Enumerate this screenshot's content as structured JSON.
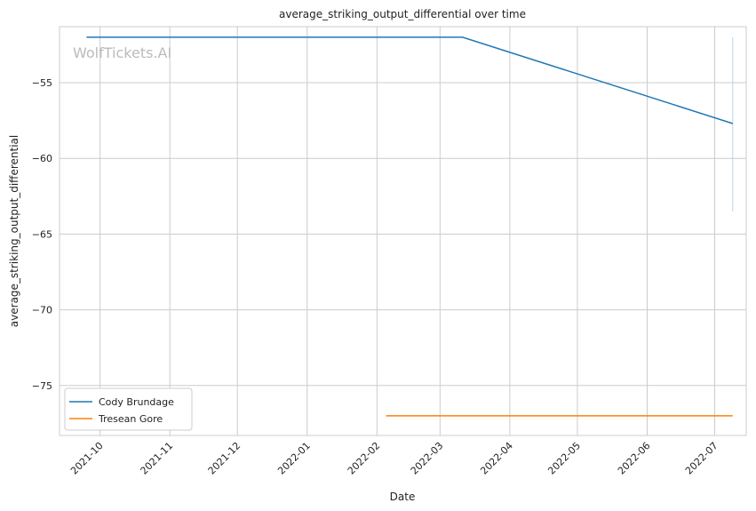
{
  "chart_data": {
    "type": "line",
    "title": "average_striking_output_differential over time",
    "xlabel": "Date",
    "ylabel": "average_striking_output_differential",
    "watermark": "WolfTickets.AI",
    "x_ticks": [
      "2021-10",
      "2021-11",
      "2021-12",
      "2022-01",
      "2022-02",
      "2022-03",
      "2022-04",
      "2022-05",
      "2022-06",
      "2022-07"
    ],
    "y_ticks": [
      -55,
      -60,
      -65,
      -70,
      -75
    ],
    "xlim": [
      "2021-09-13",
      "2022-07-15"
    ],
    "ylim": [
      -78.3,
      -51.3
    ],
    "grid": true,
    "legend_position": "lower-left",
    "series": [
      {
        "name": "Cody Brundage",
        "color": "#1f77b4",
        "points": [
          {
            "x": "2021-09-25",
            "y": -52.0
          },
          {
            "x": "2022-03-11",
            "y": -52.0
          },
          {
            "x": "2022-07-09",
            "y": -57.7
          }
        ],
        "vertical_band": {
          "x": "2022-07-09",
          "y_min": -63.5,
          "y_max": -52.0,
          "color": "#aec7e8"
        }
      },
      {
        "name": "Tresean Gore",
        "color": "#ff7f0e",
        "points": [
          {
            "x": "2022-02-05",
            "y": -77.0
          },
          {
            "x": "2022-07-09",
            "y": -77.0
          }
        ]
      }
    ]
  }
}
